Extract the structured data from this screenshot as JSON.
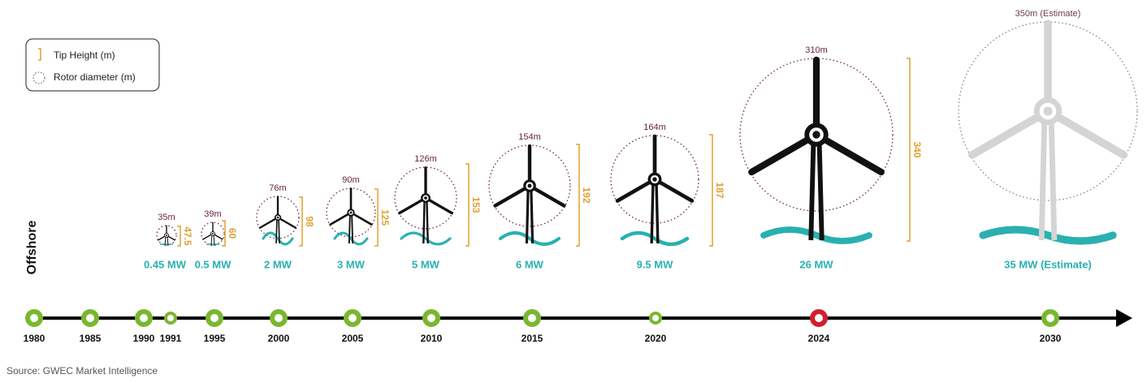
{
  "legend": {
    "tip_height": "Tip Height (m)",
    "rotor": "Rotor diameter (m)"
  },
  "segment_label": "Offshore",
  "turbines": [
    {
      "rotor": "35m",
      "tip": "47.5",
      "capacity": "0.45 MW"
    },
    {
      "rotor": "39m",
      "tip": "60",
      "capacity": "0.5 MW"
    },
    {
      "rotor": "76m",
      "tip": "98",
      "capacity": "2 MW"
    },
    {
      "rotor": "90m",
      "tip": "125",
      "capacity": "3 MW"
    },
    {
      "rotor": "126m",
      "tip": "153",
      "capacity": "5 MW"
    },
    {
      "rotor": "154m",
      "tip": "192",
      "capacity": "6 MW"
    },
    {
      "rotor": "164m",
      "tip": "187",
      "capacity": "9.5 MW"
    },
    {
      "rotor": "310m",
      "tip": "340",
      "capacity": "26 MW"
    },
    {
      "rotor": "350m (Estimate)",
      "capacity": "35 MW (Estimate)"
    }
  ],
  "timeline": [
    "1980",
    "1985",
    "1990",
    "1991",
    "1995",
    "2000",
    "2005",
    "2010",
    "2015",
    "2020",
    "2024",
    "2030"
  ],
  "source": "Source: GWEC Market Intelligence"
}
